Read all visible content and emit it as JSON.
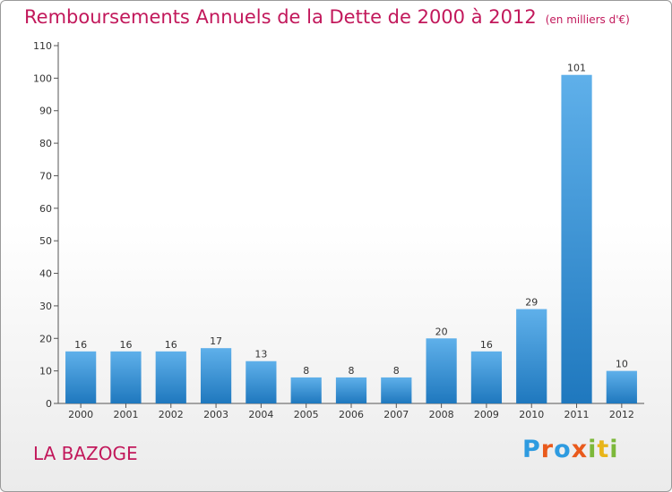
{
  "header": {
    "title": "Remboursements Annuels de la Dette de 2000 à 2012",
    "unit_note": "(en milliers d'€)"
  },
  "commune": "LA BAZOGE",
  "logo": {
    "letters": [
      "P",
      "r",
      "o",
      "x",
      "i",
      "t",
      "i"
    ],
    "colors": [
      "#2e9be0",
      "#e95a1c",
      "#2e9be0",
      "#e95a1c",
      "#7cb83a",
      "#e8b51a",
      "#7cb83a"
    ]
  },
  "colors": {
    "title": "#c2185b",
    "bar_light": "#5fb0ea",
    "bar_dark": "#1f78be",
    "axis": "#555555"
  },
  "chart_data": {
    "type": "bar",
    "categories": [
      "2000",
      "2001",
      "2002",
      "2003",
      "2004",
      "2005",
      "2006",
      "2007",
      "2008",
      "2009",
      "2010",
      "2011",
      "2012"
    ],
    "values": [
      16,
      16,
      16,
      17,
      13,
      8,
      8,
      8,
      20,
      16,
      29,
      101,
      10
    ],
    "title": "Remboursements Annuels de la Dette de 2000 à 2012",
    "xlabel": "",
    "ylabel": "",
    "ylim": [
      0,
      110
    ],
    "yticks": [
      0,
      10,
      20,
      30,
      40,
      50,
      60,
      70,
      80,
      90,
      100,
      110
    ],
    "grid": false,
    "data_labels": true
  }
}
